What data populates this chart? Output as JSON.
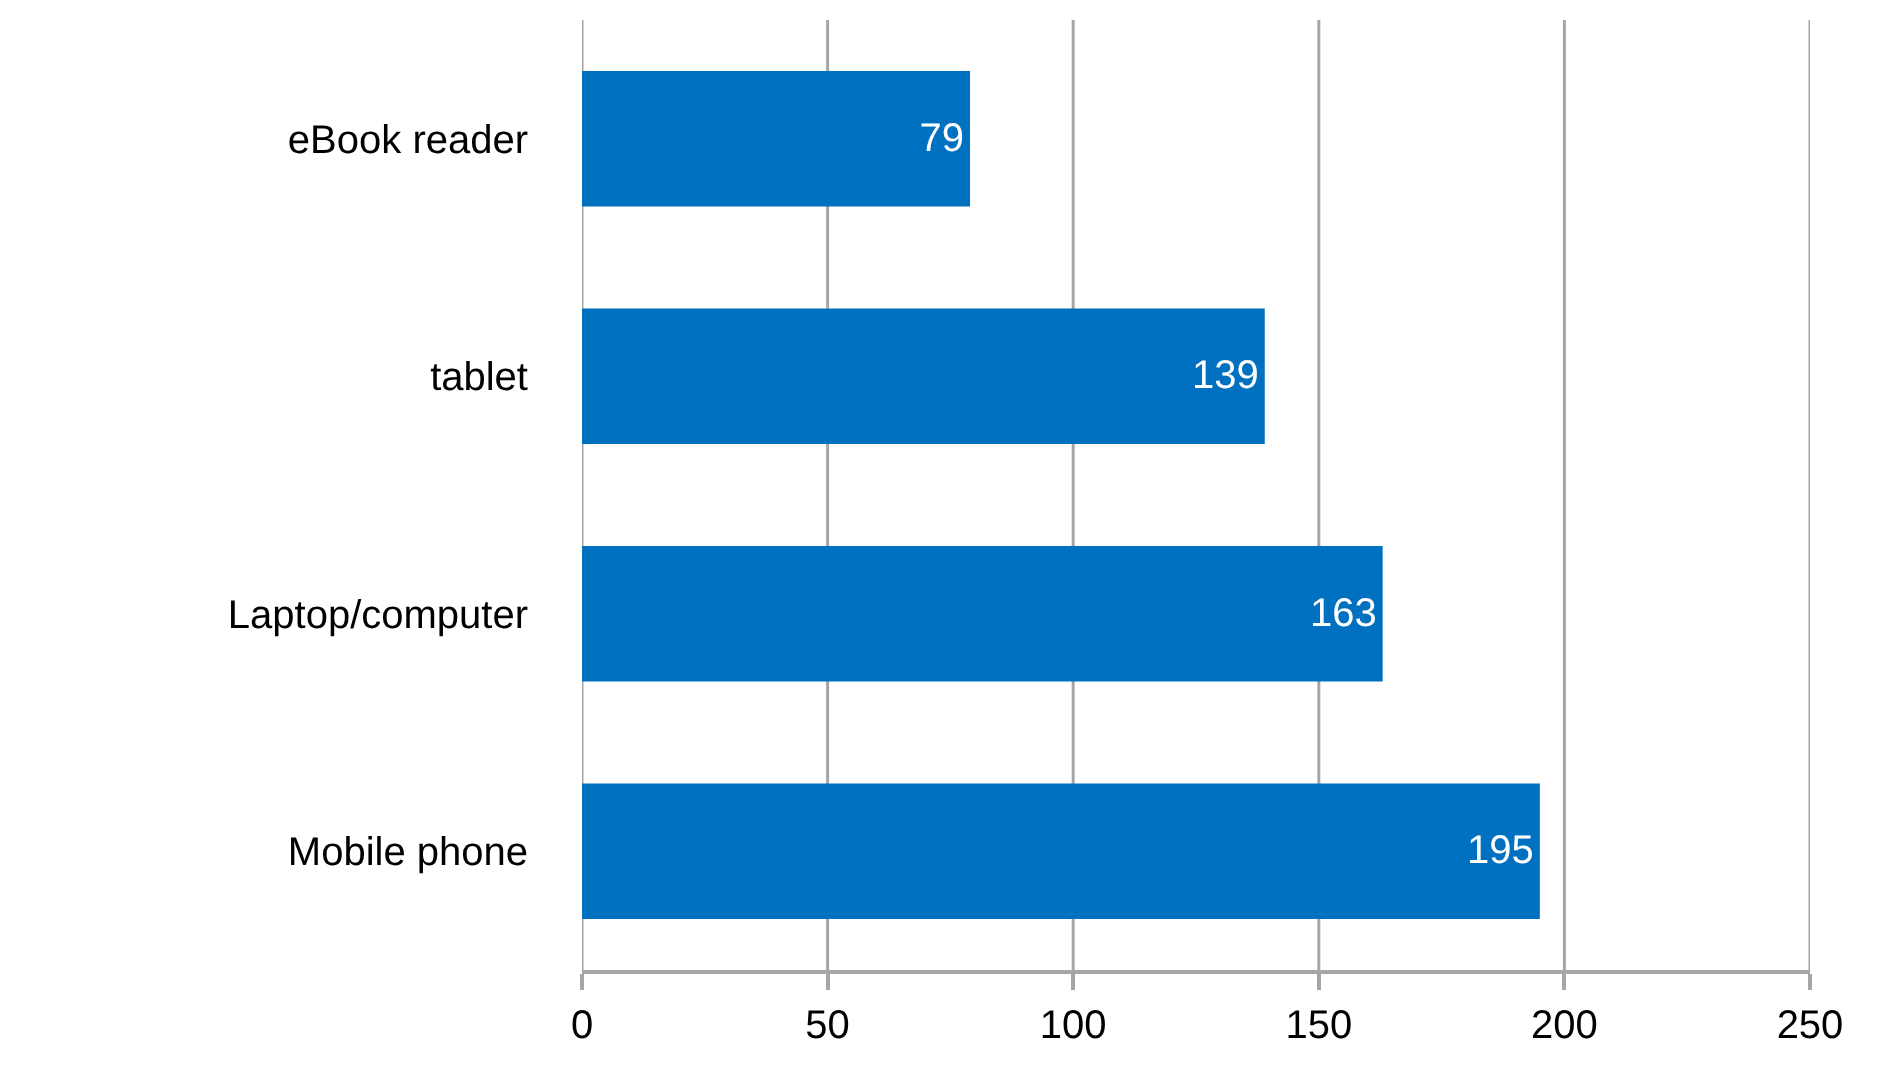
{
  "chart_data": {
    "type": "bar",
    "orientation": "horizontal",
    "categories": [
      "eBook reader",
      "tablet",
      "Laptop/computer",
      "Mobile phone"
    ],
    "values": [
      79,
      139,
      163,
      195
    ],
    "color": "#0070c0",
    "data_labels": true,
    "xlim": [
      0,
      250
    ],
    "xticks": [
      0,
      50,
      100,
      150,
      200,
      250
    ],
    "grid": "x"
  }
}
